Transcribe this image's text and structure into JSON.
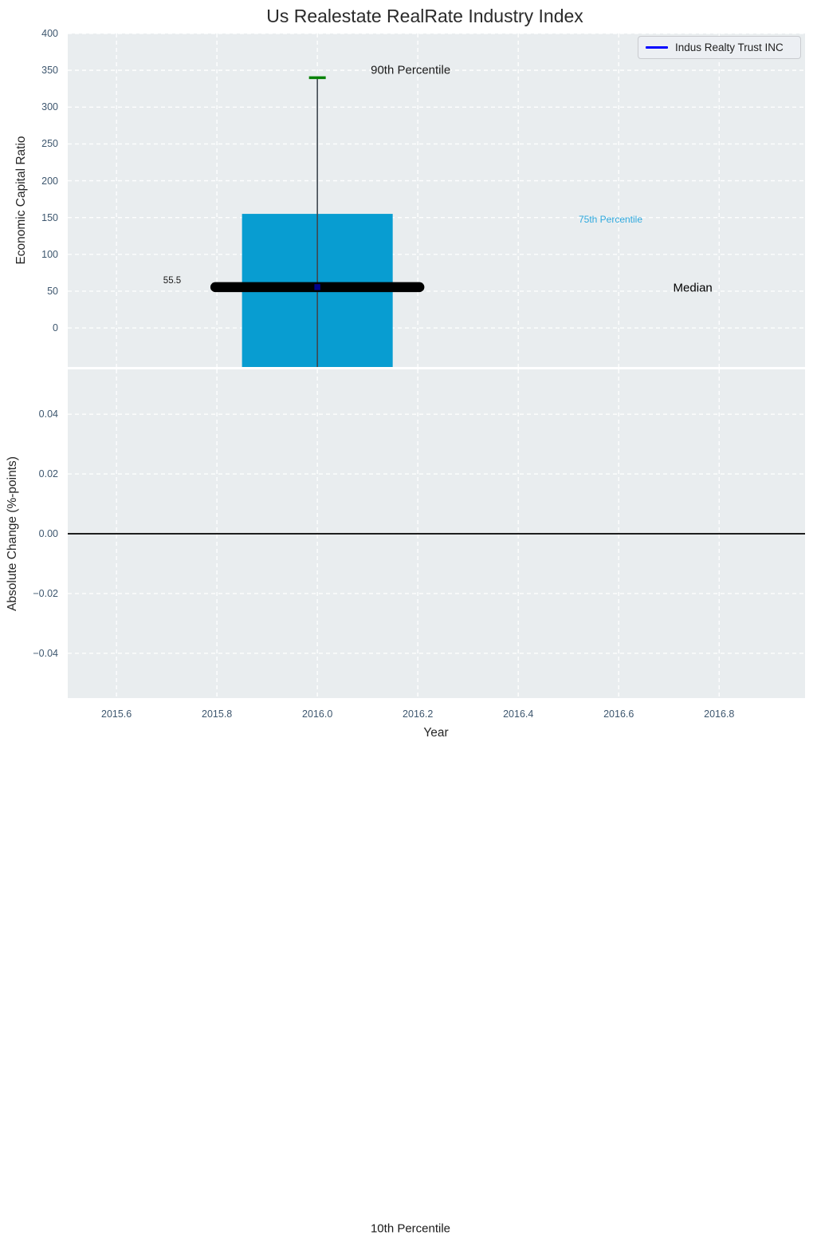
{
  "colors": {
    "axes_background": "#e9edef",
    "grid": "#ffffff",
    "bar": "#089dd1",
    "whisker": "#3f474f",
    "cap_green": "#078207",
    "median_line": "#000000",
    "median_marker": "#00008b",
    "zero_line": "#000000",
    "tick_text": "#3d566e",
    "label_text": "#262626",
    "percentile75_text": "#2fa9de",
    "annotation_text": "#1a1a1a",
    "legend_line": "#0000ff"
  },
  "xaxis": {
    "label": "Year",
    "xlim": [
      2015.503,
      2016.971
    ],
    "ticks": [
      "2015.6",
      "2015.8",
      "2016.0",
      "2016.2",
      "2016.4",
      "2016.6",
      "2016.8"
    ],
    "tick_values": [
      2015.6,
      2015.8,
      2016.0,
      2016.2,
      2016.4,
      2016.6,
      2016.8
    ]
  },
  "chart_data": [
    {
      "type": "bar",
      "title": "Us Realestate RealRate Industry Index",
      "ylabel": "Economic Capital Ratio",
      "ylim": [
        -53,
        400
      ],
      "yticks": [
        "0",
        "50",
        "100",
        "150",
        "200",
        "250",
        "300",
        "350",
        "400"
      ],
      "ytick_values": [
        0,
        50,
        100,
        150,
        200,
        250,
        300,
        350,
        400
      ],
      "grid": true,
      "legend_position": "upper right",
      "series": [
        {
          "name": "Indus Realty Trust INC",
          "x": 2016.0,
          "median": 55.5,
          "p75": 155,
          "p90": 340,
          "bar_top": 155,
          "bar_bottom_clipped_below_axis": true,
          "bar_width": 0.3
        }
      ]
    },
    {
      "type": "line",
      "ylabel": "Absolute Change (%-points)",
      "ylim": [
        -0.055,
        0.055
      ],
      "yticks": [
        "0.04",
        "0.02",
        "0.00",
        "−0.02",
        "−0.04"
      ],
      "ytick_values": [
        0.04,
        0.02,
        0.0,
        -0.02,
        -0.04
      ],
      "grid": true,
      "zero_line": 0.0,
      "values": []
    }
  ],
  "annotations": [
    {
      "id": "p90",
      "text": "90th Percentile",
      "color": "#1a1a1a"
    },
    {
      "id": "p75",
      "text": "75th Percentile",
      "color": "#2fa9de"
    },
    {
      "id": "median",
      "text": "Median",
      "color": "#000000"
    },
    {
      "id": "medval",
      "text": "55.5",
      "color": "#1a1a1a"
    },
    {
      "id": "p10",
      "text": "10th Percentile",
      "color": "#1a1a1a"
    }
  ]
}
